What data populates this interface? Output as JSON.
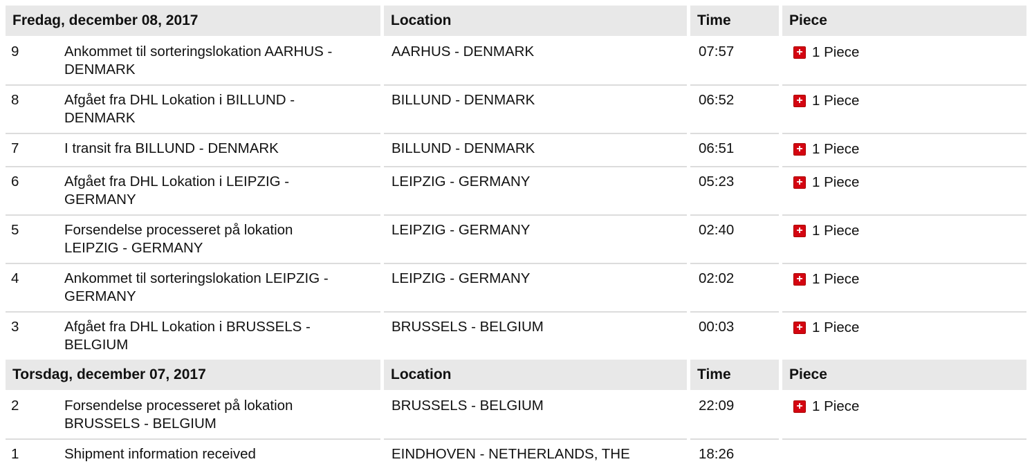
{
  "columns": {
    "location": "Location",
    "time": "Time",
    "piece": "Piece"
  },
  "groups": [
    {
      "date": "Fredag, december 08, 2017",
      "rows": [
        {
          "num": "9",
          "desc": [
            "Ankommet til sorteringslokation AARHUS -",
            "DENMARK"
          ],
          "location": "AARHUS - DENMARK",
          "time": "07:57",
          "piece": "1 Piece"
        },
        {
          "num": "8",
          "desc": [
            "Afgået fra DHL Lokation i BILLUND -",
            "DENMARK"
          ],
          "location": "BILLUND - DENMARK",
          "time": "06:52",
          "piece": "1 Piece"
        },
        {
          "num": "7",
          "desc": [
            "I transit fra BILLUND - DENMARK"
          ],
          "location": "BILLUND - DENMARK",
          "time": "06:51",
          "piece": "1 Piece"
        },
        {
          "num": "6",
          "desc": [
            "Afgået fra DHL Lokation i LEIPZIG -",
            "GERMANY"
          ],
          "location": "LEIPZIG - GERMANY",
          "time": "05:23",
          "piece": "1 Piece"
        },
        {
          "num": "5",
          "desc": [
            "Forsendelse processeret på lokation",
            "LEIPZIG - GERMANY"
          ],
          "location": "LEIPZIG - GERMANY",
          "time": "02:40",
          "piece": "1 Piece"
        },
        {
          "num": "4",
          "desc": [
            "Ankommet til sorteringslokation LEIPZIG -",
            "GERMANY"
          ],
          "location": "LEIPZIG - GERMANY",
          "time": "02:02",
          "piece": "1 Piece"
        },
        {
          "num": "3",
          "desc": [
            "Afgået fra DHL Lokation i BRUSSELS -",
            "BELGIUM"
          ],
          "location": "BRUSSELS - BELGIUM",
          "time": "00:03",
          "piece": "1 Piece"
        }
      ]
    },
    {
      "date": "Torsdag, december 07, 2017",
      "rows": [
        {
          "num": "2",
          "desc": [
            "Forsendelse processeret på lokation",
            "BRUSSELS - BELGIUM"
          ],
          "location": "BRUSSELS - BELGIUM",
          "time": "22:09",
          "piece": "1 Piece"
        },
        {
          "num": "1",
          "desc": [
            "Shipment information received"
          ],
          "location": "EINDHOVEN - NETHERLANDS, THE",
          "time": "18:26",
          "piece": ""
        }
      ]
    }
  ],
  "colors": {
    "header_bg": "#e8e8e8",
    "accent": "#d40511"
  },
  "icons": {
    "expand": "plus-square-icon"
  }
}
